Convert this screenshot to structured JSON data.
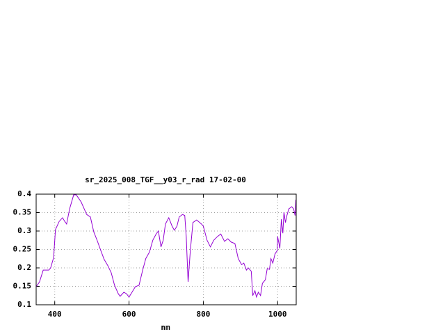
{
  "chart_data": {
    "type": "line",
    "title": "sr_2025_008_TGF__y03_r_rad 17-02-00",
    "x_label": "nm",
    "x": [
      350,
      359,
      369,
      384,
      389,
      397,
      402,
      412,
      421,
      427,
      432,
      440,
      451,
      458,
      471,
      486,
      496,
      505,
      514,
      524,
      533,
      543,
      552,
      561,
      571,
      576,
      586,
      593,
      600,
      608,
      617,
      627,
      636,
      645,
      655,
      664,
      673,
      679,
      686,
      692,
      698,
      707,
      716,
      722,
      729,
      735,
      744,
      750,
      754,
      759,
      765,
      772,
      782,
      795,
      800,
      810,
      819,
      828,
      838,
      847,
      857,
      866,
      875,
      885,
      894,
      903,
      909,
      916,
      921,
      929,
      933,
      939,
      943,
      948,
      954,
      959,
      967,
      972,
      978,
      982,
      987,
      993,
      999,
      1000,
      1006,
      1010,
      1014,
      1017,
      1021,
      1025,
      1030,
      1038,
      1043,
      1047,
      1049
    ],
    "series": [
      {
        "name": "sr_2025_008_TGF__y03_r_rad",
        "color": "#9400d3",
        "values": [
          0.149,
          0.162,
          0.194,
          0.194,
          0.2,
          0.228,
          0.304,
          0.326,
          0.336,
          0.326,
          0.319,
          0.36,
          0.398,
          0.398,
          0.379,
          0.345,
          0.338,
          0.298,
          0.275,
          0.247,
          0.223,
          0.206,
          0.187,
          0.153,
          0.13,
          0.123,
          0.134,
          0.13,
          0.121,
          0.134,
          0.149,
          0.153,
          0.191,
          0.225,
          0.243,
          0.275,
          0.292,
          0.3,
          0.257,
          0.275,
          0.319,
          0.336,
          0.313,
          0.302,
          0.313,
          0.338,
          0.345,
          0.342,
          0.285,
          0.162,
          0.247,
          0.323,
          0.33,
          0.319,
          0.313,
          0.275,
          0.257,
          0.275,
          0.285,
          0.292,
          0.272,
          0.279,
          0.27,
          0.266,
          0.225,
          0.209,
          0.213,
          0.194,
          0.2,
          0.191,
          0.125,
          0.138,
          0.121,
          0.134,
          0.125,
          0.158,
          0.168,
          0.198,
          0.196,
          0.225,
          0.213,
          0.238,
          0.247,
          0.285,
          0.253,
          0.332,
          0.294,
          0.351,
          0.323,
          0.342,
          0.36,
          0.366,
          0.36,
          0.342,
          0.385
        ]
      }
    ],
    "xlim": [
      350,
      1050
    ],
    "ylim": [
      0.1,
      0.4
    ],
    "xticks": [
      400,
      600,
      800,
      1000
    ],
    "yticks": [
      0.1,
      0.15,
      0.2,
      0.25,
      0.3,
      0.35,
      0.4
    ],
    "grid": true
  }
}
